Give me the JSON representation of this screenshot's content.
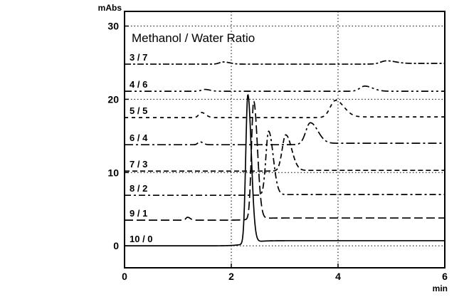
{
  "chart_data": {
    "type": "line",
    "title": "Methanol / Water Ratio",
    "xlabel": "min",
    "ylabel": "mAbs",
    "xlim": [
      0,
      6
    ],
    "ylim": [
      -3,
      32
    ],
    "x_ticks": [
      0,
      2,
      4,
      6
    ],
    "y_ticks": [
      0,
      10,
      20,
      30
    ],
    "x_tick_labels": [
      "0",
      "2",
      "4",
      "6"
    ],
    "y_tick_labels": [
      "0",
      "10",
      "20",
      "30"
    ],
    "grid": "dotted",
    "series": [
      {
        "name": "10 / 0",
        "baseline": 0.0,
        "end_level": 0.7,
        "peaks": [
          {
            "t": 2.31,
            "height": 20.3,
            "width": 0.065
          }
        ]
      },
      {
        "name": "9 / 1",
        "baseline": 3.5,
        "end_level": 3.8,
        "peaks": [
          {
            "t": 1.18,
            "height": 0.4,
            "width": 0.05
          },
          {
            "t": 2.42,
            "height": 16.1,
            "width": 0.07
          }
        ]
      },
      {
        "name": "8 / 2",
        "baseline": 6.9,
        "end_level": 7.0,
        "peaks": [
          {
            "t": 2.7,
            "height": 8.7,
            "width": 0.085
          }
        ]
      },
      {
        "name": "7 / 3",
        "baseline": 10.2,
        "end_level": 10.3,
        "peaks": [
          {
            "t": 3.02,
            "height": 4.9,
            "width": 0.11
          }
        ]
      },
      {
        "name": "6 / 4",
        "baseline": 13.8,
        "end_level": 14.0,
        "peaks": [
          {
            "t": 1.41,
            "height": 0.4,
            "width": 0.06
          },
          {
            "t": 3.48,
            "height": 2.9,
            "width": 0.14
          }
        ]
      },
      {
        "name": "5 / 5",
        "baseline": 17.5,
        "end_level": 17.6,
        "peaks": [
          {
            "t": 1.44,
            "height": 0.7,
            "width": 0.08
          },
          {
            "t": 3.95,
            "height": 2.3,
            "width": 0.16
          }
        ]
      },
      {
        "name": "4 / 6",
        "baseline": 21.1,
        "end_level": 21.1,
        "peaks": [
          {
            "t": 1.5,
            "height": 0.25,
            "width": 0.1
          },
          {
            "t": 4.5,
            "height": 0.7,
            "width": 0.15
          }
        ]
      },
      {
        "name": "3 / 7",
        "baseline": 24.8,
        "end_level": 24.9,
        "peaks": [
          {
            "t": 1.85,
            "height": 0.3,
            "width": 0.12
          },
          {
            "t": 4.9,
            "height": 0.4,
            "width": 0.17
          }
        ]
      }
    ]
  }
}
